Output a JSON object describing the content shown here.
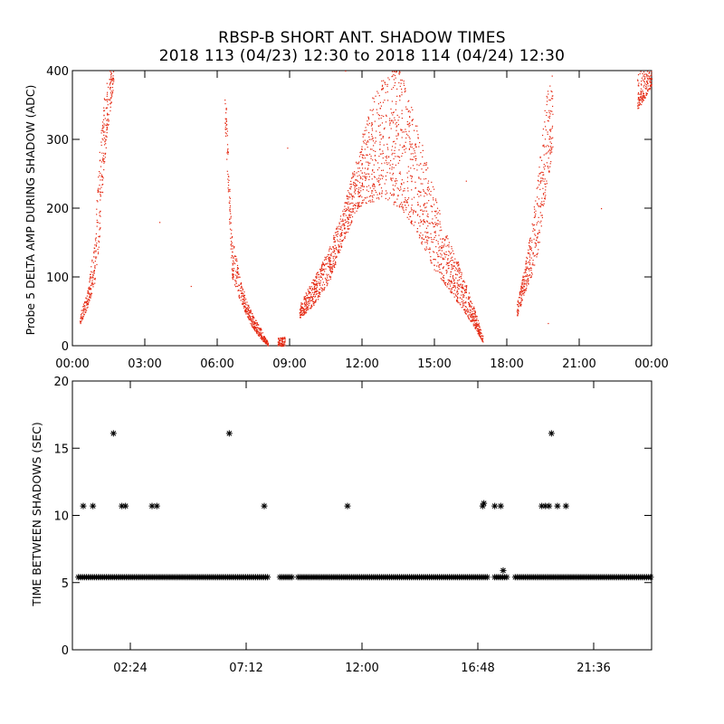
{
  "title_line1": "RBSP-B SHORT ANT. SHADOW TIMES",
  "title_line2": "2018 113 (04/23) 12:30 to 2018 114 (04/24) 12:30",
  "colors": {
    "scatter": "#e4260f",
    "axis": "#000000"
  },
  "chart_data": [
    {
      "type": "scatter",
      "ylabel": "Probe 5 DELTA AMP DURING SHADOW (ADC)",
      "xlabel": "",
      "x_unit": "hours",
      "xlim": [
        0,
        24
      ],
      "ylim": [
        0,
        400
      ],
      "x_ticks": [
        0,
        3,
        6,
        9,
        12,
        15,
        18,
        21,
        24
      ],
      "x_tick_labels": [
        "00:00",
        "03:00",
        "06:00",
        "09:00",
        "12:00",
        "15:00",
        "18:00",
        "21:00",
        "00:00"
      ],
      "y_ticks": [
        0,
        100,
        200,
        300,
        400
      ],
      "y_tick_labels": [
        "0",
        "100",
        "200",
        "300",
        "400"
      ],
      "grid": false,
      "point_style": "dot",
      "envelope_bands": [
        {
          "x": [
            0.3,
            0.6,
            0.9,
            1.1,
            1.3,
            1.5,
            1.7
          ],
          "lo": [
            30,
            55,
            90,
            150,
            260,
            330,
            380
          ],
          "hi": [
            45,
            80,
            150,
            280,
            360,
            400,
            400
          ]
        },
        {
          "x": [
            6.3,
            6.6,
            7.0,
            7.4,
            7.8,
            8.1
          ],
          "lo": [
            330,
            100,
            60,
            30,
            10,
            0
          ],
          "hi": [
            400,
            160,
            90,
            50,
            25,
            5
          ]
        },
        {
          "x": [
            8.5,
            8.8
          ],
          "lo": [
            0,
            0
          ],
          "hi": [
            12,
            14
          ]
        },
        {
          "x": [
            9.4,
            10.0,
            10.6,
            11.2,
            11.8,
            12.4,
            13.0,
            13.6,
            14.2,
            14.8,
            15.4,
            16.0,
            16.6,
            17.0
          ],
          "lo": [
            40,
            60,
            90,
            150,
            200,
            210,
            210,
            200,
            170,
            120,
            90,
            60,
            30,
            5
          ],
          "hi": [
            60,
            100,
            140,
            200,
            280,
            360,
            400,
            400,
            330,
            250,
            170,
            120,
            60,
            15
          ]
        },
        {
          "x": [
            18.4,
            18.7,
            19.0,
            19.3,
            19.6,
            19.9
          ],
          "lo": [
            40,
            75,
            100,
            140,
            220,
            290
          ],
          "hi": [
            60,
            110,
            170,
            260,
            360,
            400
          ]
        },
        {
          "x": [
            23.4,
            23.7,
            24.0
          ],
          "lo": [
            340,
            360,
            380
          ],
          "hi": [
            400,
            400,
            400
          ]
        }
      ],
      "outliers": [
        [
          4.9,
          87
        ],
        [
          3.6,
          180
        ],
        [
          8.9,
          288
        ],
        [
          11.3,
          400
        ],
        [
          16.3,
          240
        ],
        [
          19.7,
          33
        ],
        [
          21.9,
          200
        ]
      ]
    },
    {
      "type": "scatter",
      "ylabel": "TIME BETWEEN SHADOWS (SEC)",
      "xlabel": "",
      "x_unit": "hours",
      "xlim": [
        0,
        24
      ],
      "ylim": [
        0,
        20
      ],
      "x_ticks": [
        2.4,
        7.2,
        12.0,
        16.8,
        21.6
      ],
      "x_tick_labels": [
        "02:24",
        "07:12",
        "12:00",
        "16:48",
        "21:36"
      ],
      "y_ticks": [
        0,
        5,
        10,
        15,
        20
      ],
      "y_tick_labels": [
        "0",
        "5",
        "10",
        "15",
        "20"
      ],
      "grid": false,
      "point_style": "asterisk",
      "baseline": {
        "y": 5.4,
        "segments": [
          [
            0.25,
            8.1
          ],
          [
            8.6,
            9.1
          ],
          [
            9.35,
            17.25
          ],
          [
            17.5,
            18.05
          ],
          [
            18.35,
            24
          ]
        ]
      },
      "points": [
        [
          0.45,
          10.7
        ],
        [
          0.85,
          10.7
        ],
        [
          1.7,
          16.1
        ],
        [
          2.05,
          10.7
        ],
        [
          2.2,
          10.7
        ],
        [
          3.3,
          10.7
        ],
        [
          3.5,
          10.7
        ],
        [
          6.5,
          16.1
        ],
        [
          7.95,
          10.7
        ],
        [
          11.4,
          10.7
        ],
        [
          17.0,
          10.7
        ],
        [
          17.05,
          10.9
        ],
        [
          17.5,
          10.7
        ],
        [
          17.75,
          10.7
        ],
        [
          17.85,
          5.9
        ],
        [
          19.45,
          10.7
        ],
        [
          19.6,
          10.7
        ],
        [
          19.85,
          16.1
        ],
        [
          19.75,
          10.7
        ],
        [
          20.1,
          10.7
        ],
        [
          20.45,
          10.7
        ]
      ]
    }
  ]
}
